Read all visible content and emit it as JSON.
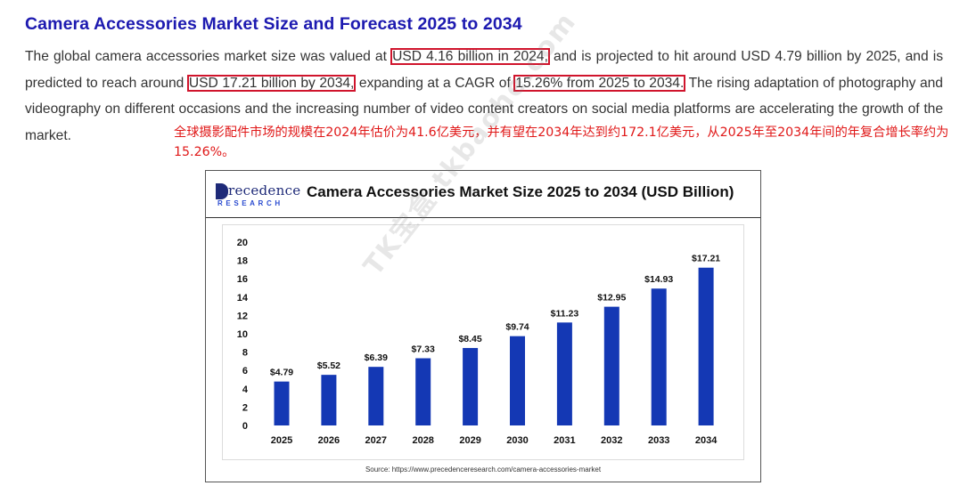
{
  "article": {
    "title": "Camera Accessories Market Size and Forecast 2025 to 2034",
    "para_1": "The global camera accessories market size was valued at ",
    "hl_1": "USD 4.16 billion in 2024,",
    "para_2": " and is projected to hit around USD 4.79 billion by 2025, and is predicted to reach around ",
    "hl_2": "USD 17.21 billion by 2034,",
    "para_3": " expanding at a CAGR of ",
    "hl_3": "15.26% from 2025 to 2034.",
    "para_4": " The rising adaptation of photography and videography on different occasions and the increasing number of video content creators on social media platforms are accelerating the growth of the market.",
    "chinese_note": "全球摄影配件市场的规模在2024年估价为41.6亿美元，并有望在2034年达到约172.1亿美元，从2025年至2034年间的年复合增长率约为15.26%。"
  },
  "logo": {
    "main": "recedence",
    "sub": "RESEARCH"
  },
  "watermark": "TK宝盒 tkbaohe.com",
  "source_note": "Source: https://www.precedenceresearch.com/camera-accessories-market",
  "colors": {
    "title": "#1d1ab0",
    "highlight_border": "#d0142c",
    "chinese_text": "#e01818",
    "bar": "#1438b4"
  },
  "chart_data": {
    "type": "bar",
    "title": "Camera Accessories Market Size 2025 to 2034 (USD Billion)",
    "categories": [
      "2025",
      "2026",
      "2027",
      "2028",
      "2029",
      "2030",
      "2031",
      "2032",
      "2033",
      "2034"
    ],
    "values": [
      4.79,
      5.52,
      6.39,
      7.33,
      8.45,
      9.74,
      11.23,
      12.95,
      14.93,
      17.21
    ],
    "data_labels": [
      "$4.79",
      "$5.52",
      "$6.39",
      "$7.33",
      "$8.45",
      "$9.74",
      "$11.23",
      "$12.95",
      "$14.93",
      "$17.21"
    ],
    "y_ticks": [
      "0",
      "2",
      "4",
      "6",
      "8",
      "10",
      "12",
      "14",
      "16",
      "18",
      "20"
    ],
    "ylim": [
      0,
      20
    ],
    "xlabel": "",
    "ylabel": "",
    "grid": false,
    "legend": "none"
  }
}
